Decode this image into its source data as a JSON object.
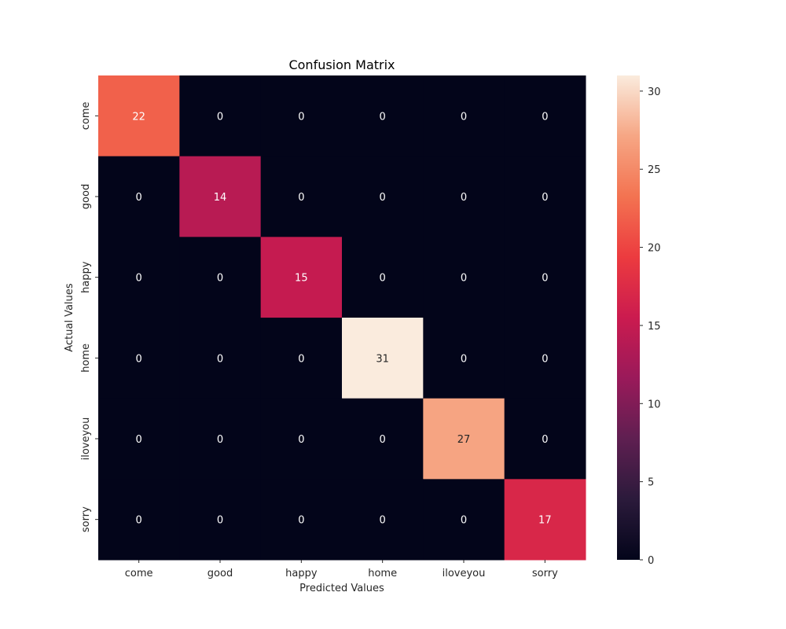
{
  "chart_data": {
    "type": "heatmap",
    "title": "Confusion Matrix",
    "xlabel": "Predicted Values",
    "ylabel": "Actual Values",
    "x_categories": [
      "come",
      "good",
      "happy",
      "home",
      "iloveyou",
      "sorry"
    ],
    "y_categories": [
      "come",
      "good",
      "happy",
      "home",
      "iloveyou",
      "sorry"
    ],
    "values": [
      [
        22,
        0,
        0,
        0,
        0,
        0
      ],
      [
        0,
        14,
        0,
        0,
        0,
        0
      ],
      [
        0,
        0,
        15,
        0,
        0,
        0
      ],
      [
        0,
        0,
        0,
        31,
        0,
        0
      ],
      [
        0,
        0,
        0,
        0,
        27,
        0
      ],
      [
        0,
        0,
        0,
        0,
        0,
        17
      ]
    ],
    "colorbar": {
      "range": [
        0,
        31
      ],
      "ticks": [
        0,
        5,
        10,
        15,
        20,
        25,
        30
      ],
      "colormap": "rocket"
    },
    "annotations": true,
    "grid": false
  }
}
